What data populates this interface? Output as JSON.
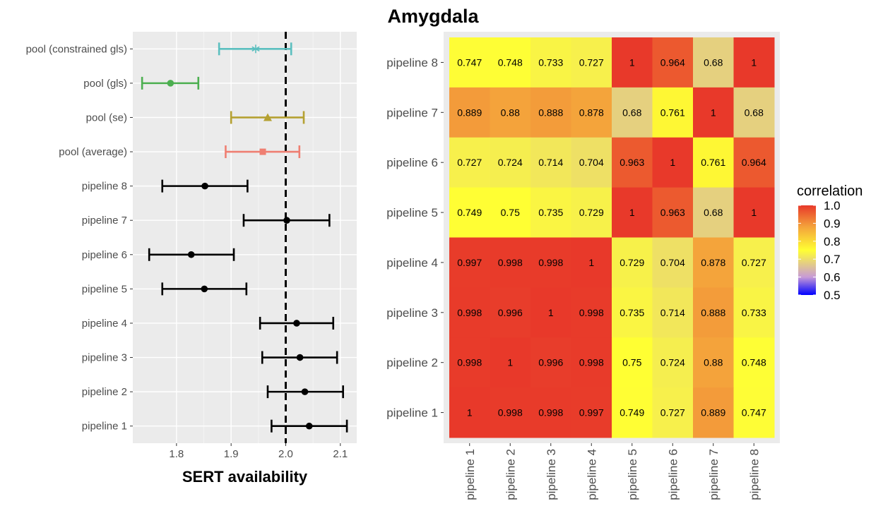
{
  "chart_data": [
    {
      "type": "scatter",
      "subtype": "forest-plot",
      "xlabel": "SERT availability",
      "xlim": [
        1.72,
        2.13
      ],
      "xticks": [
        1.8,
        1.9,
        2.0,
        2.1
      ],
      "xtick_labels": [
        "1.8",
        "1.9",
        "2.0",
        "2.1"
      ],
      "reference_line": {
        "x": 2.0,
        "style": "dashed"
      },
      "grid": true,
      "rows": [
        {
          "label": "pool (constrained gls)",
          "estimate": 1.945,
          "lower": 1.878,
          "upper": 2.01,
          "color": "#5bbfbf",
          "marker": "asterisk"
        },
        {
          "label": "pool (gls)",
          "estimate": 1.789,
          "lower": 1.737,
          "upper": 1.84,
          "color": "#4caf50",
          "marker": "circle"
        },
        {
          "label": "pool (se)",
          "estimate": 1.967,
          "lower": 1.9,
          "upper": 2.033,
          "color": "#b5a132",
          "marker": "triangle"
        },
        {
          "label": "pool (average)",
          "estimate": 1.958,
          "lower": 1.89,
          "upper": 2.025,
          "color": "#ef7f72",
          "marker": "square"
        },
        {
          "label": "pipeline 8",
          "estimate": 1.852,
          "lower": 1.774,
          "upper": 1.93,
          "color": "#000000",
          "marker": "circle"
        },
        {
          "label": "pipeline 7",
          "estimate": 2.002,
          "lower": 1.923,
          "upper": 2.08,
          "color": "#000000",
          "marker": "circle"
        },
        {
          "label": "pipeline 6",
          "estimate": 1.827,
          "lower": 1.75,
          "upper": 1.905,
          "color": "#000000",
          "marker": "circle"
        },
        {
          "label": "pipeline 5",
          "estimate": 1.851,
          "lower": 1.774,
          "upper": 1.928,
          "color": "#000000",
          "marker": "circle"
        },
        {
          "label": "pipeline 4",
          "estimate": 2.02,
          "lower": 1.953,
          "upper": 2.087,
          "color": "#000000",
          "marker": "circle"
        },
        {
          "label": "pipeline 3",
          "estimate": 2.026,
          "lower": 1.957,
          "upper": 2.094,
          "color": "#000000",
          "marker": "circle"
        },
        {
          "label": "pipeline 2",
          "estimate": 2.035,
          "lower": 1.967,
          "upper": 2.105,
          "color": "#000000",
          "marker": "circle"
        },
        {
          "label": "pipeline 1",
          "estimate": 2.043,
          "lower": 1.974,
          "upper": 2.112,
          "color": "#000000",
          "marker": "circle"
        }
      ]
    },
    {
      "type": "heatmap",
      "title": "Amygdala",
      "x_categories": [
        "pipeline 1",
        "pipeline 2",
        "pipeline 3",
        "pipeline 4",
        "pipeline 5",
        "pipeline 6",
        "pipeline 7",
        "pipeline 8"
      ],
      "y_categories": [
        "pipeline 8",
        "pipeline 7",
        "pipeline 6",
        "pipeline 5",
        "pipeline 4",
        "pipeline 3",
        "pipeline 2",
        "pipeline 1"
      ],
      "values": [
        [
          "0.747",
          "0.748",
          "0.733",
          "0.727",
          "1",
          "0.964",
          "0.68",
          "1"
        ],
        [
          "0.889",
          "0.88",
          "0.888",
          "0.878",
          "0.68",
          "0.761",
          "1",
          "0.68"
        ],
        [
          "0.727",
          "0.724",
          "0.714",
          "0.704",
          "0.963",
          "1",
          "0.761",
          "0.964"
        ],
        [
          "0.749",
          "0.75",
          "0.735",
          "0.729",
          "1",
          "0.963",
          "0.68",
          "1"
        ],
        [
          "0.997",
          "0.998",
          "0.998",
          "1",
          "0.729",
          "0.704",
          "0.878",
          "0.727"
        ],
        [
          "0.998",
          "0.996",
          "1",
          "0.998",
          "0.735",
          "0.714",
          "0.888",
          "0.733"
        ],
        [
          "0.998",
          "1",
          "0.996",
          "0.998",
          "0.75",
          "0.724",
          "0.88",
          "0.748"
        ],
        [
          "1",
          "0.998",
          "0.998",
          "0.997",
          "0.749",
          "0.727",
          "0.889",
          "0.747"
        ]
      ],
      "legend": {
        "title": "correlation",
        "range": [
          0.5,
          1.0
        ],
        "ticks": [
          "1.0",
          "0.9",
          "0.8",
          "0.7",
          "0.6",
          "0.5"
        ],
        "position": "right",
        "colors": [
          "#0000ff",
          "#c89bd6",
          "#ffff33",
          "#f4a33b",
          "#e8392a"
        ]
      }
    }
  ]
}
